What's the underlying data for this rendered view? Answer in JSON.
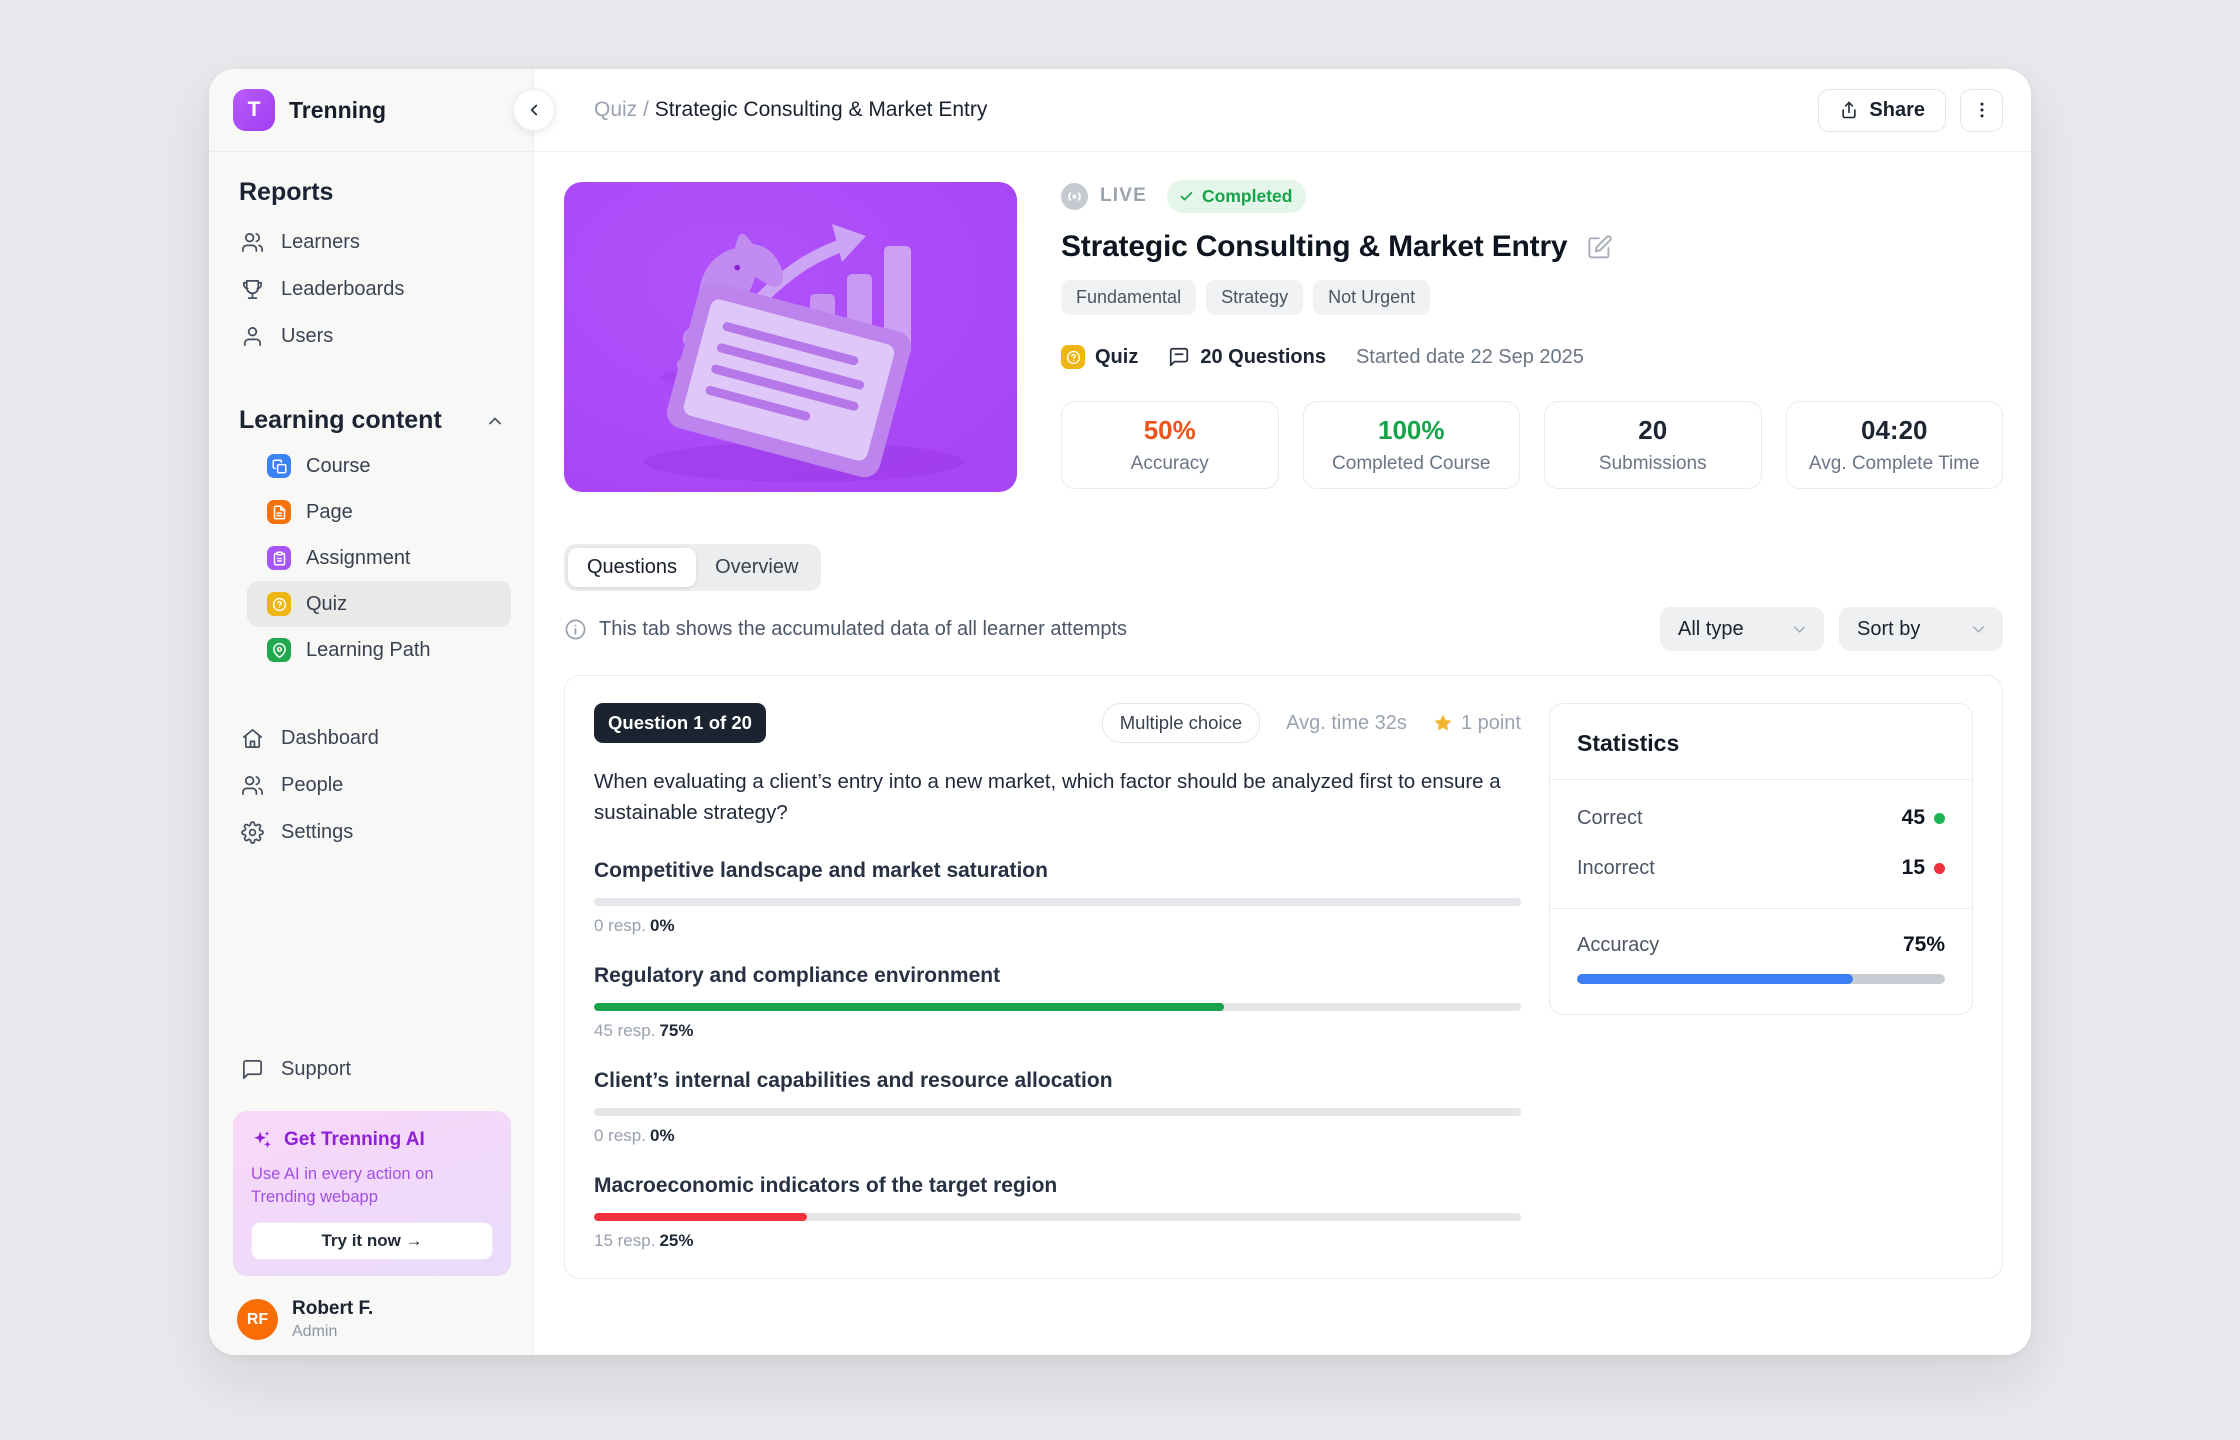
{
  "brand": {
    "name": "Trenning",
    "initial": "T"
  },
  "sidebar": {
    "reports": {
      "title": "Reports",
      "items": [
        {
          "label": "Learners"
        },
        {
          "label": "Leaderboards"
        },
        {
          "label": "Users"
        }
      ]
    },
    "learning": {
      "title": "Learning content",
      "items": [
        {
          "label": "Course"
        },
        {
          "label": "Page"
        },
        {
          "label": "Assignment"
        },
        {
          "label": "Quiz"
        },
        {
          "label": "Learning Path"
        }
      ]
    },
    "bottom_nav": [
      {
        "label": "Dashboard"
      },
      {
        "label": "People"
      },
      {
        "label": "Settings"
      }
    ],
    "support_label": "Support",
    "ai_card": {
      "title": "Get Trenning AI",
      "body": "Use AI in every action on Trending webapp",
      "cta": "Try it now →"
    },
    "user": {
      "initials": "RF",
      "name": "Robert F.",
      "role": "Admin"
    }
  },
  "topbar": {
    "breadcrumb_section": "Quiz /",
    "breadcrumb_current": "Strategic Consulting & Market Entry",
    "share_label": "Share"
  },
  "quiz": {
    "live_label": "LIVE",
    "status": "Completed",
    "title": "Strategic Consulting & Market Entry",
    "tags": [
      "Fundamental",
      "Strategy",
      "Not Urgent"
    ],
    "type_label": "Quiz",
    "questions_count_label": "20 Questions",
    "started_label": "Started date 22 Sep 2025",
    "stat_cards": [
      {
        "value": "50%",
        "label": "Accuracy",
        "color": "#ed531c"
      },
      {
        "value": "100%",
        "label": "Completed Course",
        "color": "#17a34a"
      },
      {
        "value": "20",
        "label": "Submissions",
        "color": "#1f2633"
      },
      {
        "value": "04:20",
        "label": "Avg. Complete Time",
        "color": "#1f2633"
      }
    ]
  },
  "tabs": {
    "active": "Questions",
    "inactive": "Overview"
  },
  "note": "This tab shows the accumulated data of all learner attempts",
  "filters": {
    "type_label": "All type",
    "sort_label": "Sort by"
  },
  "question": {
    "badge": "Question 1 of 20",
    "type": "Multiple choice",
    "avg_time": "Avg. time 32s",
    "points": "1 point",
    "text": "When evaluating a client’s entry into a new market, which factor should be analyzed first to ensure a sustainable strategy?",
    "options": [
      {
        "label": "Competitive landscape and market saturation",
        "responses": "0 resp.",
        "percent": "0%",
        "fill": 0,
        "color": "#17a24b"
      },
      {
        "label": "Regulatory and compliance environment",
        "responses": "45 resp.",
        "percent": "75%",
        "fill": 68,
        "color": "#17a24b"
      },
      {
        "label": "Client’s internal capabilities and resource allocation",
        "responses": "0 resp.",
        "percent": "0%",
        "fill": 0,
        "color": "#17a24b"
      },
      {
        "label": "Macroeconomic indicators of the target region",
        "responses": "15 resp.",
        "percent": "25%",
        "fill": 23,
        "color": "#f2303c"
      }
    ]
  },
  "statistics": {
    "title": "Statistics",
    "rows": [
      {
        "label": "Correct",
        "value": "45",
        "dot_color": "#1cb454"
      },
      {
        "label": "Incorrect",
        "value": "15",
        "dot_color": "#f2303c"
      }
    ],
    "accuracy": {
      "label": "Accuracy",
      "value": "75%",
      "fill": 75,
      "color": "#3c7ef4"
    }
  }
}
